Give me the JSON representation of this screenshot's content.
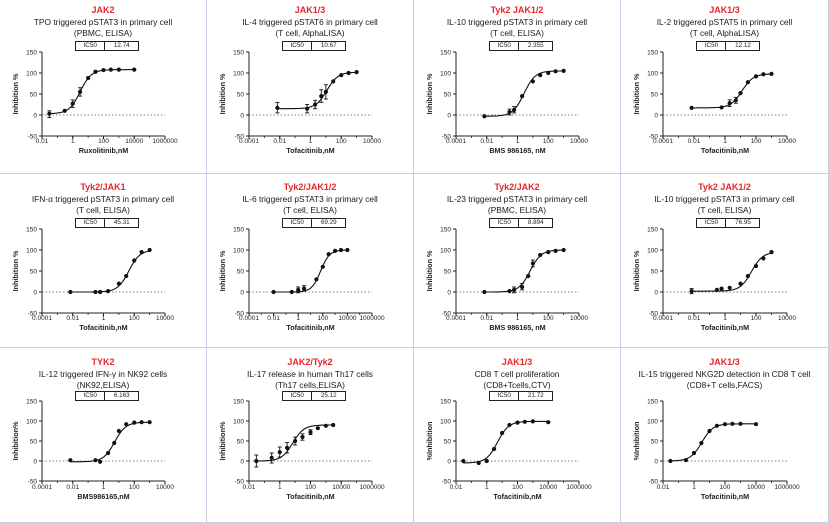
{
  "chart_data": [
    {
      "type": "scatter",
      "kinase": "JAK2",
      "title_line1": "TPO triggered pSTAT3 in primary cell",
      "title_line2": "(PBMC, ELISA)",
      "ic50_label": "IC50",
      "ic50_value": "12.74",
      "xlabel": "Ruxolitinib,nM",
      "ylabel": "Inhibition %",
      "xticks": [
        "0.01",
        "1",
        "100",
        "10000",
        "1000000"
      ],
      "yticks": [
        "-50",
        "0",
        "50",
        "100",
        "150"
      ],
      "xlim": [
        0.01,
        1000000
      ],
      "ylim": [
        -50,
        150
      ],
      "x_scale": "log",
      "points": [
        {
          "x": 0.03,
          "y": 3
        },
        {
          "x": 0.3,
          "y": 10
        },
        {
          "x": 1,
          "y": 27
        },
        {
          "x": 3,
          "y": 55
        },
        {
          "x": 10,
          "y": 88
        },
        {
          "x": 30,
          "y": 103
        },
        {
          "x": 100,
          "y": 107
        },
        {
          "x": 300,
          "y": 108
        },
        {
          "x": 1000,
          "y": 108
        },
        {
          "x": 10000,
          "y": 108
        }
      ],
      "error_bars": [
        {
          "x": 0.03,
          "low": -6,
          "high": 10
        },
        {
          "x": 1,
          "low": 18,
          "high": 36
        },
        {
          "x": 3,
          "low": 45,
          "high": 65
        }
      ]
    },
    {
      "type": "scatter",
      "kinase": "JAK1/3",
      "title_line1": "IL-4 triggered pSTAT6 in primary cell",
      "title_line2": "(T cell, AlphaLISA)",
      "ic50_label": "IC50",
      "ic50_value": "10.67",
      "xlabel": "Tofacitinib,nM",
      "ylabel": "Inhibition %",
      "xticks": [
        "0.0001",
        "0.01",
        "1",
        "100",
        "10000"
      ],
      "yticks": [
        "-50",
        "0",
        "50",
        "100",
        "150"
      ],
      "xlim": [
        0.0001,
        10000
      ],
      "ylim": [
        -50,
        150
      ],
      "x_scale": "log",
      "points": [
        {
          "x": 0.007,
          "y": 17
        },
        {
          "x": 0.6,
          "y": 15
        },
        {
          "x": 2,
          "y": 25
        },
        {
          "x": 5,
          "y": 45
        },
        {
          "x": 10,
          "y": 55
        },
        {
          "x": 30,
          "y": 80
        },
        {
          "x": 100,
          "y": 95
        },
        {
          "x": 300,
          "y": 100
        },
        {
          "x": 1000,
          "y": 102
        }
      ],
      "error_bars": [
        {
          "x": 0.007,
          "low": 5,
          "high": 30
        },
        {
          "x": 0.6,
          "low": 5,
          "high": 25
        },
        {
          "x": 2,
          "low": 15,
          "high": 35
        },
        {
          "x": 5,
          "low": 30,
          "high": 60
        },
        {
          "x": 10,
          "low": 38,
          "high": 72
        }
      ]
    },
    {
      "type": "scatter",
      "kinase": "Tyk2 JAK1/2",
      "title_line1": "IL-10 triggered pSTAT3 in primary cell",
      "title_line2": "(T cell, ELISA)",
      "ic50_label": "IC50",
      "ic50_value": "2.355",
      "xlabel": "BMS 986165, nM",
      "ylabel": "Inhibition %",
      "xticks": [
        "0.0001",
        "0.01",
        "1",
        "100",
        "10000"
      ],
      "yticks": [
        "-50",
        "0",
        "50",
        "100",
        "150"
      ],
      "xlim": [
        0.0001,
        10000
      ],
      "ylim": [
        -50,
        150
      ],
      "x_scale": "log",
      "points": [
        {
          "x": 0.007,
          "y": -3
        },
        {
          "x": 0.3,
          "y": 7
        },
        {
          "x": 0.6,
          "y": 12
        },
        {
          "x": 2,
          "y": 45
        },
        {
          "x": 10,
          "y": 80
        },
        {
          "x": 30,
          "y": 95
        },
        {
          "x": 100,
          "y": 100
        },
        {
          "x": 300,
          "y": 104
        },
        {
          "x": 1000,
          "y": 105
        }
      ],
      "error_bars": [
        {
          "x": 0.3,
          "low": 0,
          "high": 14
        },
        {
          "x": 0.6,
          "low": 5,
          "high": 20
        }
      ]
    },
    {
      "type": "scatter",
      "kinase": "JAK1/3",
      "title_line1": "IL-2 triggered pSTAT5 in primary cell",
      "title_line2": "(T cell, AlphaLISA)",
      "ic50_label": "IC50",
      "ic50_value": "12.12",
      "xlabel": "Tofacitinib,nM",
      "ylabel": "Inhibition %",
      "xticks": [
        "0.0001",
        "0.01",
        "1",
        "100",
        "10000"
      ],
      "yticks": [
        "-50",
        "0",
        "50",
        "100",
        "150"
      ],
      "xlim": [
        0.0001,
        10000
      ],
      "ylim": [
        -50,
        150
      ],
      "x_scale": "log",
      "points": [
        {
          "x": 0.007,
          "y": 17
        },
        {
          "x": 0.6,
          "y": 18
        },
        {
          "x": 2,
          "y": 28
        },
        {
          "x": 5,
          "y": 35
        },
        {
          "x": 10,
          "y": 52
        },
        {
          "x": 30,
          "y": 78
        },
        {
          "x": 100,
          "y": 92
        },
        {
          "x": 300,
          "y": 97
        },
        {
          "x": 1000,
          "y": 98
        }
      ],
      "error_bars": [
        {
          "x": 2,
          "low": 20,
          "high": 36
        },
        {
          "x": 5,
          "low": 28,
          "high": 42
        }
      ]
    },
    {
      "type": "scatter",
      "kinase": "Tyk2/JAK1",
      "title_line1": "IFN-α triggered pSTAT3 in primary cell",
      "title_line2": "(T cell, ELISA)",
      "ic50_label": "IC50",
      "ic50_value": "45.31",
      "xlabel": "Tofacitinib,nM",
      "ylabel": "Inhibition %",
      "xticks": [
        "0.0001",
        "0.01",
        "1",
        "100",
        "10000"
      ],
      "yticks": [
        "-50",
        "0",
        "50",
        "100",
        "150"
      ],
      "xlim": [
        0.0001,
        10000
      ],
      "ylim": [
        -50,
        150
      ],
      "x_scale": "log",
      "points": [
        {
          "x": 0.007,
          "y": 0
        },
        {
          "x": 0.3,
          "y": 0
        },
        {
          "x": 0.6,
          "y": 0
        },
        {
          "x": 2,
          "y": 2
        },
        {
          "x": 10,
          "y": 20
        },
        {
          "x": 30,
          "y": 38
        },
        {
          "x": 100,
          "y": 75
        },
        {
          "x": 300,
          "y": 95
        },
        {
          "x": 1000,
          "y": 100
        }
      ],
      "error_bars": []
    },
    {
      "type": "scatter",
      "kinase": "Tyk2/JAK1/2",
      "title_line1": "IL-6 triggered pSTAT3 in primary cell",
      "title_line2": "(T cell, ELISA)",
      "ic50_label": "IC50",
      "ic50_value": "69.29",
      "xlabel": "Tofacitinib,nM",
      "ylabel": "Inhibition %",
      "xticks": [
        "0.0001",
        "0.01",
        "1",
        "100",
        "10000",
        "1000000"
      ],
      "yticks": [
        "-50",
        "0",
        "50",
        "100",
        "150"
      ],
      "xlim": [
        0.0001,
        1000000
      ],
      "ylim": [
        -50,
        150
      ],
      "x_scale": "log",
      "points": [
        {
          "x": 0.01,
          "y": 0
        },
        {
          "x": 0.3,
          "y": 0
        },
        {
          "x": 1,
          "y": 5
        },
        {
          "x": 3,
          "y": 8
        },
        {
          "x": 30,
          "y": 30
        },
        {
          "x": 100,
          "y": 60
        },
        {
          "x": 300,
          "y": 90
        },
        {
          "x": 1000,
          "y": 98
        },
        {
          "x": 3000,
          "y": 100
        },
        {
          "x": 10000,
          "y": 100
        }
      ],
      "error_bars": [
        {
          "x": 1,
          "low": -2,
          "high": 12
        },
        {
          "x": 3,
          "low": 2,
          "high": 15
        }
      ]
    },
    {
      "type": "scatter",
      "kinase": "Tyk2/JAK2",
      "title_line1": "IL-23 triggered pSTAT3 in primary cell",
      "title_line2": "(PBMC, ELISA)",
      "ic50_label": "IC50",
      "ic50_value": "8.894",
      "xlabel": "BMS 986165, nM",
      "ylabel": "Inhibition %",
      "xticks": [
        "0.0001",
        "0.01",
        "1",
        "100",
        "10000"
      ],
      "yticks": [
        "-50",
        "0",
        "50",
        "100",
        "150"
      ],
      "xlim": [
        0.0001,
        10000
      ],
      "ylim": [
        -50,
        150
      ],
      "x_scale": "log",
      "points": [
        {
          "x": 0.007,
          "y": 0
        },
        {
          "x": 0.3,
          "y": 2
        },
        {
          "x": 0.6,
          "y": 5
        },
        {
          "x": 2,
          "y": 12
        },
        {
          "x": 5,
          "y": 38
        },
        {
          "x": 10,
          "y": 68
        },
        {
          "x": 30,
          "y": 88
        },
        {
          "x": 100,
          "y": 95
        },
        {
          "x": 300,
          "y": 98
        },
        {
          "x": 1000,
          "y": 100
        }
      ],
      "error_bars": [
        {
          "x": 0.6,
          "low": -2,
          "high": 12
        },
        {
          "x": 2,
          "low": 5,
          "high": 20
        },
        {
          "x": 10,
          "low": 60,
          "high": 76
        }
      ]
    },
    {
      "type": "scatter",
      "kinase": "Tyk2 JAK1/2",
      "title_line1": "IL-10 triggered pSTAT3 in primary cell",
      "title_line2": "(T cell, ELISA)",
      "ic50_label": "IC50",
      "ic50_value": "76.95",
      "xlabel": "Tofacitinib,nM",
      "ylabel": "Inhibition %",
      "xticks": [
        "0.0001",
        "0.01",
        "1",
        "100",
        "10000"
      ],
      "yticks": [
        "-50",
        "0",
        "50",
        "100",
        "150"
      ],
      "xlim": [
        0.0001,
        10000
      ],
      "ylim": [
        -50,
        150
      ],
      "x_scale": "log",
      "points": [
        {
          "x": 0.007,
          "y": 2
        },
        {
          "x": 0.3,
          "y": 5
        },
        {
          "x": 0.6,
          "y": 8
        },
        {
          "x": 2,
          "y": 10
        },
        {
          "x": 10,
          "y": 20
        },
        {
          "x": 30,
          "y": 38
        },
        {
          "x": 100,
          "y": 62
        },
        {
          "x": 300,
          "y": 80
        },
        {
          "x": 1000,
          "y": 95
        }
      ],
      "error_bars": [
        {
          "x": 0.007,
          "low": -4,
          "high": 8
        }
      ]
    },
    {
      "type": "scatter",
      "kinase": "TYK2",
      "title_line1": "IL-12 triggered IFN-γ in NK92 cells",
      "title_line2": "(NK92,ELISA)",
      "ic50_label": "IC50",
      "ic50_value": "6.163",
      "xlabel": "BMS986165,nM",
      "ylabel": "Inhibition%",
      "xticks": [
        "0.0001",
        "0.01",
        "1",
        "100",
        "10000"
      ],
      "yticks": [
        "-50",
        "0",
        "50",
        "100",
        "150"
      ],
      "xlim": [
        0.0001,
        10000
      ],
      "ylim": [
        -50,
        150
      ],
      "x_scale": "log",
      "points": [
        {
          "x": 0.007,
          "y": 2
        },
        {
          "x": 0.3,
          "y": 2
        },
        {
          "x": 0.6,
          "y": -2
        },
        {
          "x": 2,
          "y": 20
        },
        {
          "x": 5,
          "y": 45
        },
        {
          "x": 10,
          "y": 75
        },
        {
          "x": 30,
          "y": 92
        },
        {
          "x": 100,
          "y": 96
        },
        {
          "x": 300,
          "y": 97
        },
        {
          "x": 1000,
          "y": 97
        }
      ],
      "error_bars": []
    },
    {
      "type": "scatter",
      "kinase": "JAK2/Tyk2",
      "title_line1": "IL-17 release in human Th17 cells",
      "title_line2": "(Th17 cells,ELISA)",
      "ic50_label": "IC50",
      "ic50_value": "25.12",
      "xlabel": "Tofacitinib,nM",
      "ylabel": "Inhibition%",
      "xticks": [
        "0.01",
        "1",
        "100",
        "10000",
        "1000000"
      ],
      "yticks": [
        "-50",
        "0",
        "50",
        "100",
        "150"
      ],
      "xlim": [
        0.01,
        1000000
      ],
      "ylim": [
        -50,
        150
      ],
      "x_scale": "log",
      "points": [
        {
          "x": 0.03,
          "y": 0
        },
        {
          "x": 0.3,
          "y": 8
        },
        {
          "x": 1,
          "y": 22
        },
        {
          "x": 3,
          "y": 33
        },
        {
          "x": 10,
          "y": 50
        },
        {
          "x": 30,
          "y": 60
        },
        {
          "x": 100,
          "y": 72
        },
        {
          "x": 300,
          "y": 82
        },
        {
          "x": 1000,
          "y": 88
        },
        {
          "x": 3000,
          "y": 90
        }
      ],
      "error_bars": [
        {
          "x": 0.03,
          "low": -15,
          "high": 15
        },
        {
          "x": 0.3,
          "low": -5,
          "high": 20
        },
        {
          "x": 1,
          "low": 10,
          "high": 35
        },
        {
          "x": 3,
          "low": 20,
          "high": 46
        },
        {
          "x": 10,
          "low": 40,
          "high": 60
        },
        {
          "x": 30,
          "low": 52,
          "high": 68
        },
        {
          "x": 100,
          "low": 66,
          "high": 78
        }
      ]
    },
    {
      "type": "scatter",
      "kinase": "JAK1/3",
      "title_line1": "CD8 T cell proliferation",
      "title_line2": "(CD8+Tcells,CTV)",
      "ic50_label": "IC50",
      "ic50_value": "21.72",
      "xlabel": "Tofacitinib,nM",
      "ylabel": "%Inhibition",
      "xticks": [
        "0.01",
        "1",
        "100",
        "10000",
        "1000000"
      ],
      "yticks": [
        "-50",
        "0",
        "50",
        "100",
        "150"
      ],
      "xlim": [
        0.01,
        1000000
      ],
      "ylim": [
        -50,
        150
      ],
      "x_scale": "log",
      "points": [
        {
          "x": 0.03,
          "y": 0
        },
        {
          "x": 0.3,
          "y": -5
        },
        {
          "x": 1,
          "y": 0
        },
        {
          "x": 3,
          "y": 30
        },
        {
          "x": 10,
          "y": 70
        },
        {
          "x": 30,
          "y": 90
        },
        {
          "x": 100,
          "y": 96
        },
        {
          "x": 300,
          "y": 98
        },
        {
          "x": 1000,
          "y": 99
        },
        {
          "x": 10000,
          "y": 97
        }
      ],
      "error_bars": []
    },
    {
      "type": "scatter",
      "kinase": "JAK1/3",
      "title_line1": "IL-15 triggered NKG2D detection in CD8 T cell",
      "title_line2": "(CD8+T cells,FACS)",
      "ic50_label": "",
      "ic50_value": "",
      "xlabel": "Tofacitinib,nM",
      "ylabel": "%Inhibition",
      "xticks": [
        "0.01",
        "1",
        "100",
        "10000",
        "1000000"
      ],
      "yticks": [
        "-50",
        "0",
        "50",
        "100",
        "150"
      ],
      "xlim": [
        0.01,
        1000000
      ],
      "ylim": [
        -50,
        150
      ],
      "x_scale": "log",
      "points": [
        {
          "x": 0.03,
          "y": 0
        },
        {
          "x": 0.3,
          "y": 2
        },
        {
          "x": 1,
          "y": 20
        },
        {
          "x": 3,
          "y": 45
        },
        {
          "x": 10,
          "y": 75
        },
        {
          "x": 30,
          "y": 88
        },
        {
          "x": 100,
          "y": 92
        },
        {
          "x": 300,
          "y": 93
        },
        {
          "x": 1000,
          "y": 93
        },
        {
          "x": 10000,
          "y": 92
        }
      ],
      "error_bars": []
    }
  ]
}
